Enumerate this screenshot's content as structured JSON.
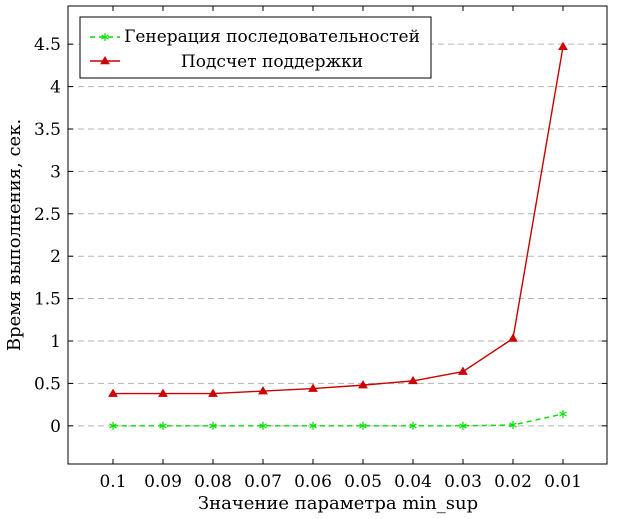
{
  "chart_data": {
    "type": "line",
    "xlabel": "Значение параметра min_sup",
    "ylabel": "Время выполнения, сек.",
    "categories": [
      "0.1",
      "0.09",
      "0.08",
      "0.07",
      "0.06",
      "0.05",
      "0.04",
      "0.03",
      "0.02",
      "0.01"
    ],
    "ylim": [
      -0.45,
      4.95
    ],
    "yticks": [
      "0",
      "0.5",
      "1",
      "1.5",
      "2",
      "2.5",
      "3",
      "3.5",
      "4",
      "4.5"
    ],
    "grid": "horizontal dashed",
    "legend_position": "top-left",
    "series": [
      {
        "name": "Генерация последовательностей",
        "color": "#00e000",
        "line_style": "dashed",
        "marker": "star",
        "values": [
          0,
          0,
          0,
          0,
          0,
          0,
          0,
          0,
          0.01,
          0.14
        ]
      },
      {
        "name": "Подсчет поддержки",
        "color": "#cc0000",
        "line_style": "solid",
        "marker": "triangle",
        "values": [
          0.38,
          0.38,
          0.38,
          0.41,
          0.44,
          0.48,
          0.53,
          0.64,
          1.03,
          4.47
        ]
      }
    ]
  }
}
